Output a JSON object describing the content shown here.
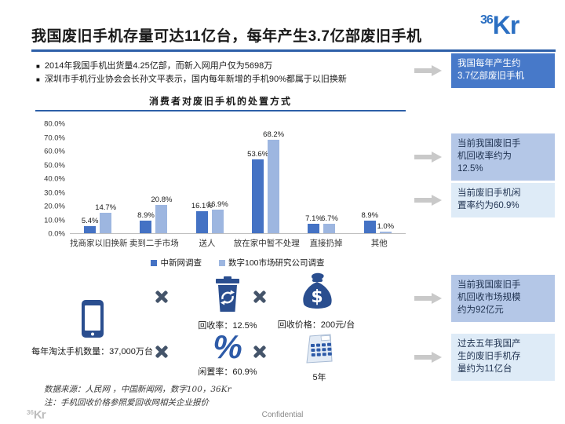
{
  "header": {
    "title": "我国废旧手机存量可达11亿台，每年产生3.7亿部废旧手机",
    "logo": {
      "sup": "36",
      "text": "Kr"
    },
    "bullet_marker": "■",
    "bullets": [
      "2014年我国手机出货量4.25亿部，而新入网用户仅为5698万",
      "深圳市手机行业协会会长孙文平表示，国内每年新增的手机90%都属于以旧换新"
    ]
  },
  "chart_data": {
    "type": "bar",
    "title": "消费者对废旧手机的处置方式",
    "categories": [
      "找商家以旧换新",
      "卖到二手市场",
      "送人",
      "放在家中暂不处理",
      "直接扔掉",
      "其他"
    ],
    "series": [
      {
        "name": "中新网调查",
        "color": "#4472C4",
        "values": [
          5.4,
          8.9,
          16.1,
          53.6,
          7.1,
          8.9
        ]
      },
      {
        "name": "数字100市场研究公司调查",
        "color": "#9DB6E0",
        "values": [
          14.7,
          20.8,
          16.9,
          68.2,
          6.7,
          1.0
        ]
      }
    ],
    "ylabel": "",
    "xlabel": "",
    "ylim": [
      0,
      80
    ],
    "ytick_step": 10,
    "yticks": [
      "80.0%",
      "70.0%",
      "60.0%",
      "50.0%",
      "40.0%",
      "30.0%",
      "20.0%",
      "10.0%",
      "0.0%"
    ],
    "value_label_format": "one-decimal-percent",
    "grid": false,
    "legend_position": "bottom"
  },
  "callouts": [
    {
      "style": "dark",
      "text": "我国每年产生约\n3.7亿部废旧手机"
    },
    {
      "style": "medium",
      "text": "当前我国废旧手\n机回收率约为\n12.5%"
    },
    {
      "style": "light",
      "text": "当前废旧手机闲\n置率约为60.9%"
    },
    {
      "style": "medium",
      "text": "当前我国废旧手\n机回收市场规模\n约为92亿元"
    },
    {
      "style": "light",
      "text": "过去五年我国产\n生的废旧手机存\n量约为11亿台"
    }
  ],
  "infographic": {
    "phone_label": "每年淘汰手机数量：37,000万台",
    "recycle_label": "回收率：12.5%",
    "price_label": "回收价格：200元/台",
    "idle_label": "闲置率：60.9%",
    "percent_glyph": "%",
    "years_label": "5年"
  },
  "footer": {
    "source": "数据来源：人民网 ，中国新闻网，数字100，36Kr",
    "note": "注：手机回收价格参照爱回收网相关企业报价",
    "logo": {
      "sup": "36",
      "text": "Kr"
    },
    "confidential": "Confidential"
  },
  "colors": {
    "accent_rule": "#2D5FA8",
    "series1": "#4472C4",
    "series2": "#9DB6E0",
    "callout_dark": "#4779C9",
    "callout_medium": "#B4C7E7",
    "callout_light": "#DEEBF7",
    "icon_blue": "#2A4E8F",
    "multiply_x": "#44546A",
    "arrow_gray": "#C9C9C9"
  }
}
